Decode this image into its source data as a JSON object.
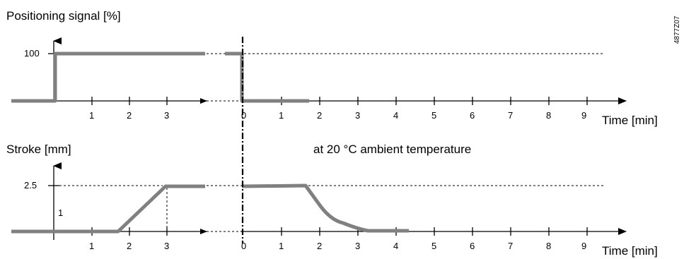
{
  "diagram": {
    "top": {
      "title": "Positioning signal  [%]",
      "y_label_value": "100",
      "x_axis_label": "Time  [min]",
      "left_ticks": [
        "1",
        "2",
        "3"
      ],
      "right_ticks": [
        "0",
        "1",
        "2",
        "3",
        "4",
        "5",
        "6",
        "7",
        "8",
        "9"
      ]
    },
    "bottom": {
      "title": "Stroke  [mm]",
      "y_label_value": "2.5",
      "y_label_mid": "1",
      "note": "at 20 °C ambient temperature",
      "x_axis_label": "Time  [min]",
      "left_ticks": [
        "1",
        "2",
        "3"
      ],
      "right_ticks": [
        "0",
        "1",
        "2",
        "3",
        "4",
        "5",
        "6",
        "7",
        "8",
        "9"
      ]
    },
    "doc_id": "4877Z07"
  },
  "chart_data": [
    {
      "type": "line",
      "title": "Positioning signal  [%]",
      "xlabel": "Time  [min]",
      "ylabel": "Positioning signal  [%]",
      "segments": [
        {
          "x": [
            -1,
            0,
            0,
            3.9
          ],
          "y": [
            0,
            0,
            100,
            100
          ]
        },
        {
          "x_after_break": [
            -0.4,
            0,
            0,
            1.7
          ],
          "y": [
            100,
            100,
            0,
            0
          ]
        }
      ]
    },
    {
      "type": "line",
      "title": "Stroke  [mm]",
      "xlabel": "Time  [min]",
      "ylabel": "Stroke  [mm]",
      "note": "at 20 °C ambient temperature",
      "segments": [
        {
          "x": [
            -1,
            1.7,
            3,
            3.9
          ],
          "y": [
            0,
            0,
            2.5,
            2.5
          ]
        },
        {
          "x_after_break": [
            0,
            1.65,
            2,
            2.5,
            3.2,
            4.4
          ],
          "y": [
            2.5,
            2.5,
            1.4,
            0.35,
            0,
            0
          ]
        }
      ]
    }
  ]
}
